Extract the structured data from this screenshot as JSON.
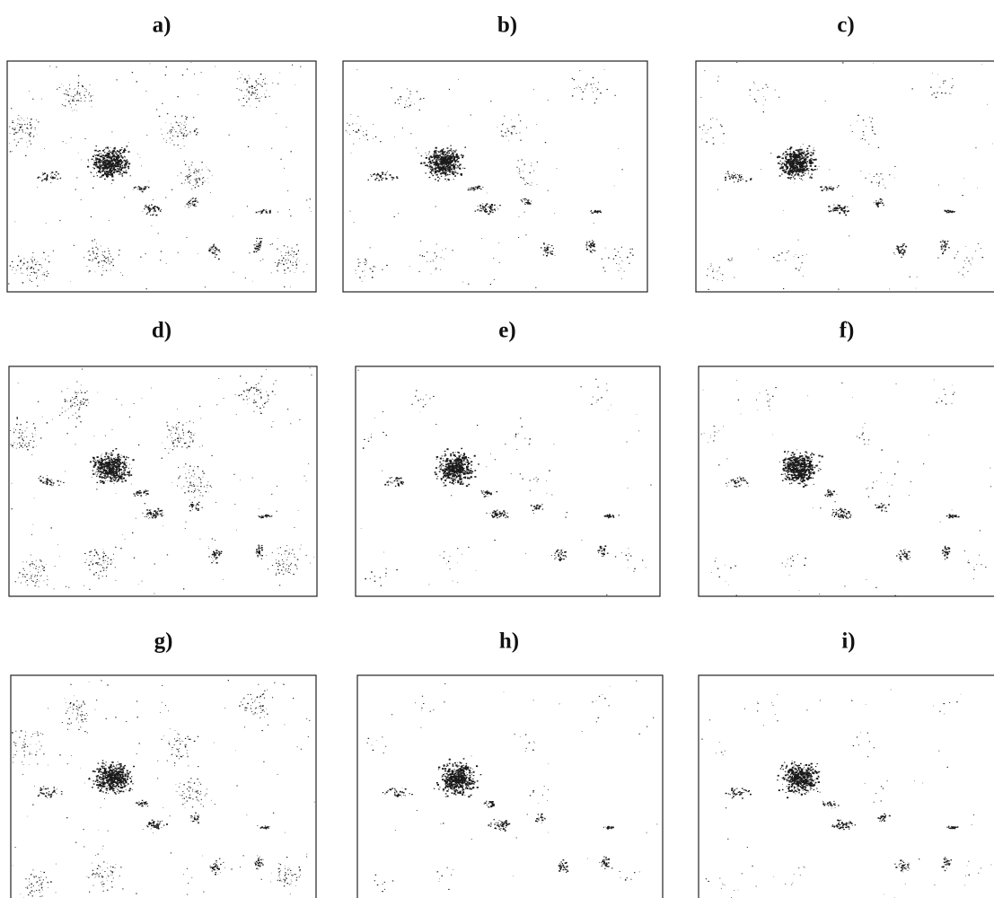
{
  "panels": [
    {
      "label": "a)"
    },
    {
      "label": "b)"
    },
    {
      "label": "c)"
    },
    {
      "label": "d)"
    },
    {
      "label": "e)"
    },
    {
      "label": "f)"
    },
    {
      "label": "g)"
    },
    {
      "label": "h)"
    },
    {
      "label": "i)"
    }
  ]
}
